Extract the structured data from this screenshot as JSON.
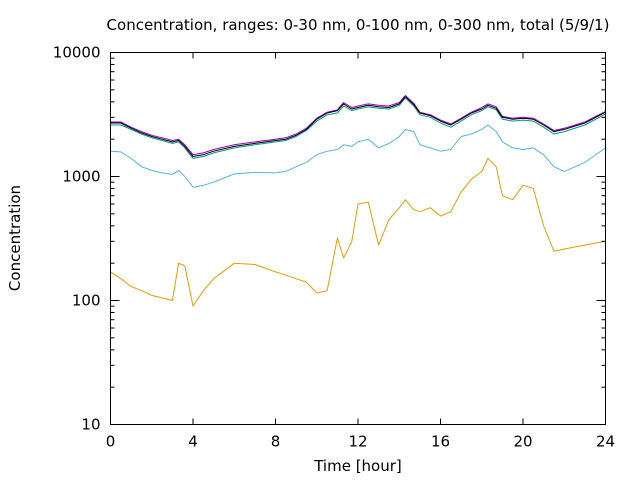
{
  "chart_data": {
    "type": "line",
    "title": "Concentration, ranges: 0-30 nm, 0-100 nm, 0-300 nm, total (5/9/1)",
    "xlabel": "Time [hour]",
    "ylabel": "Concentration",
    "xlim": [
      0,
      24
    ],
    "ylim": [
      10,
      10000
    ],
    "yscale": "log",
    "grid": false,
    "legend": "none",
    "x_ticks": [
      "0",
      "4",
      "8",
      "12",
      "16",
      "20",
      "24"
    ],
    "y_ticks": [
      "10",
      "100",
      "1000",
      "10000"
    ],
    "x": [
      0,
      0.5,
      1,
      1.5,
      2,
      2.5,
      3,
      3.3,
      3.6,
      4,
      4.5,
      5,
      6,
      7,
      8,
      8.5,
      9,
      9.5,
      10,
      10.5,
      11,
      11.3,
      11.7,
      12,
      12.5,
      13,
      13.5,
      14,
      14.3,
      14.7,
      15,
      15.5,
      16,
      16.5,
      17,
      17.5,
      18,
      18.3,
      18.7,
      19,
      19.5,
      20,
      20.5,
      21,
      21.5,
      22,
      23,
      24
    ],
    "series": [
      {
        "color": "#e69f00",
        "values": [
          170,
          150,
          130,
          120,
          110,
          105,
          100,
          200,
          190,
          90,
          120,
          150,
          200,
          195,
          170,
          160,
          150,
          140,
          115,
          120,
          320,
          220,
          300,
          600,
          620,
          280,
          450,
          560,
          650,
          540,
          520,
          560,
          480,
          520,
          750,
          950,
          1100,
          1400,
          1200,
          700,
          650,
          850,
          800,
          400,
          250,
          260,
          280,
          300
        ]
      },
      {
        "color": "#56b4e9",
        "values": [
          1600,
          1580,
          1400,
          1200,
          1120,
          1070,
          1040,
          1120,
          1000,
          820,
          850,
          900,
          1050,
          1080,
          1070,
          1100,
          1200,
          1300,
          1500,
          1600,
          1650,
          1800,
          1750,
          1900,
          2000,
          1700,
          1850,
          2100,
          2400,
          2300,
          1800,
          1700,
          1600,
          1650,
          2100,
          2200,
          2400,
          2600,
          2300,
          1900,
          1700,
          1650,
          1700,
          1500,
          1200,
          1100,
          1300,
          1700
        ]
      },
      {
        "color": "#009e73",
        "values": [
          2600,
          2600,
          2400,
          2200,
          2050,
          1950,
          1850,
          1900,
          1700,
          1400,
          1450,
          1550,
          1700,
          1800,
          1900,
          1950,
          2100,
          2350,
          2800,
          3150,
          3250,
          3700,
          3400,
          3500,
          3650,
          3550,
          3500,
          3750,
          4300,
          3700,
          3150,
          3000,
          2700,
          2500,
          2800,
          3150,
          3400,
          3650,
          3450,
          2900,
          2800,
          2850,
          2800,
          2500,
          2200,
          2300,
          2600,
          3200
        ]
      },
      {
        "color": "#9400d3",
        "values": [
          2750,
          2750,
          2500,
          2300,
          2150,
          2050,
          1950,
          2000,
          1800,
          1500,
          1550,
          1650,
          1800,
          1900,
          2000,
          2050,
          2200,
          2450,
          2950,
          3300,
          3450,
          3950,
          3600,
          3700,
          3850,
          3750,
          3700,
          3950,
          4500,
          3900,
          3300,
          3150,
          2850,
          2650,
          2950,
          3300,
          3600,
          3850,
          3650,
          3050,
          2950,
          3000,
          2950,
          2650,
          2350,
          2450,
          2750,
          3350
        ]
      },
      {
        "color": "#000000",
        "values": [
          2700,
          2700,
          2450,
          2250,
          2100,
          2000,
          1900,
          1950,
          1750,
          1450,
          1500,
          1600,
          1750,
          1850,
          1950,
          2000,
          2150,
          2400,
          2900,
          3250,
          3400,
          3850,
          3500,
          3600,
          3750,
          3650,
          3600,
          3850,
          4400,
          3800,
          3250,
          3100,
          2800,
          2600,
          2900,
          3250,
          3500,
          3750,
          3550,
          3000,
          2900,
          2950,
          2900,
          2600,
          2300,
          2400,
          2700,
          3300
        ]
      }
    ]
  }
}
